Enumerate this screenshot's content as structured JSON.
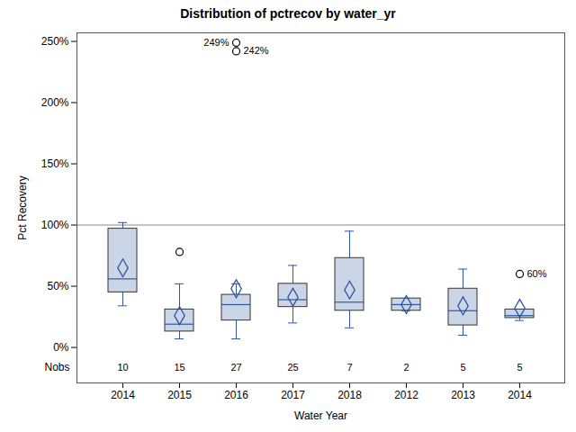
{
  "chart_data": {
    "type": "box",
    "title": "Distribution of pctrecov by water_yr",
    "x_label": "Water Year",
    "y_label": "Pct Recovery",
    "categories": [
      "2014",
      "2015",
      "2016",
      "2017",
      "2018",
      "2012",
      "2013",
      "2014"
    ],
    "boxes": [
      {
        "whisker_low": 34,
        "q1": 45,
        "median": 56,
        "q3": 97,
        "whisker_high": 102,
        "mean": 65,
        "outliers": []
      },
      {
        "whisker_low": 7,
        "q1": 13,
        "median": 19,
        "q3": 31,
        "whisker_high": 52,
        "mean": 26,
        "outliers": [
          {
            "value": 78
          }
        ]
      },
      {
        "whisker_low": 7,
        "q1": 22,
        "median": 35,
        "q3": 43,
        "whisker_high": 52,
        "mean": 48,
        "outliers": [
          {
            "value": 249,
            "label": "249%"
          },
          {
            "value": 242,
            "label": "242%"
          }
        ]
      },
      {
        "whisker_low": 20,
        "q1": 33,
        "median": 39,
        "q3": 52,
        "whisker_high": 67,
        "mean": 41,
        "outliers": []
      },
      {
        "whisker_low": 16,
        "q1": 30,
        "median": 37,
        "q3": 73,
        "whisker_high": 95,
        "mean": 47,
        "outliers": []
      },
      {
        "whisker_low": 30,
        "q1": 30,
        "median": 35,
        "q3": 40,
        "whisker_high": 40,
        "mean": 35,
        "outliers": []
      },
      {
        "whisker_low": 10,
        "q1": 18,
        "median": 30,
        "q3": 48,
        "whisker_high": 64,
        "mean": 34,
        "outliers": []
      },
      {
        "whisker_low": 22,
        "q1": 24,
        "median": 26,
        "q3": 31,
        "whisker_high": 31,
        "mean": 32,
        "outliers": [
          {
            "value": 60,
            "label": "60%"
          }
        ]
      }
    ],
    "nobs_label": "Nobs",
    "nobs": [
      10,
      15,
      27,
      25,
      7,
      2,
      5,
      5
    ],
    "reference_lines": [
      100
    ],
    "color": "#cad5e6",
    "ylim": [
      -29,
      257
    ],
    "yticks": [
      {
        "value": 0,
        "label": "0%"
      },
      {
        "value": 50,
        "label": "50%"
      },
      {
        "value": 100,
        "label": "100%"
      },
      {
        "value": 150,
        "label": "150%"
      },
      {
        "value": 200,
        "label": "200%"
      },
      {
        "value": 250,
        "label": "250%"
      }
    ]
  }
}
